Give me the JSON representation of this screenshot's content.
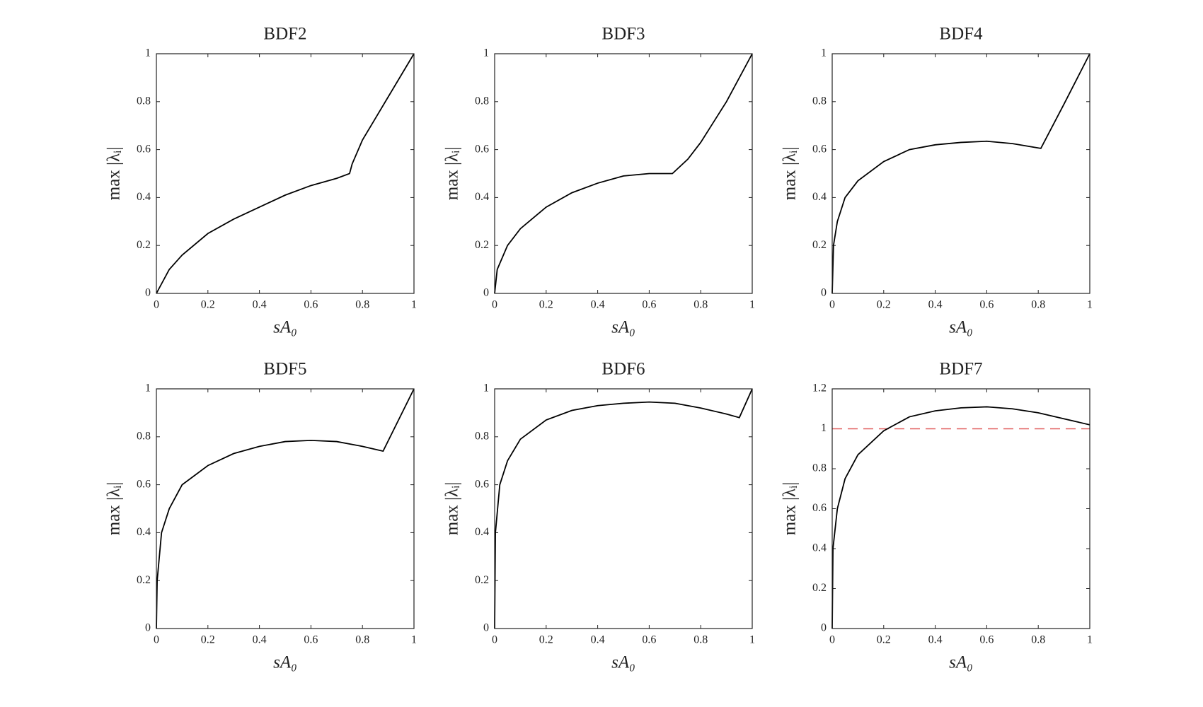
{
  "chart_data": [
    {
      "type": "line",
      "title": "BDF2",
      "xlabel": "sA₀",
      "ylabel": "max |λᵢ|",
      "color": "#000000",
      "x": [
        0,
        0.05,
        0.1,
        0.2,
        0.3,
        0.4,
        0.5,
        0.6,
        0.7,
        0.75,
        0.76,
        0.8,
        0.85,
        0.9,
        0.95,
        1
      ],
      "values": [
        0,
        0.1,
        0.16,
        0.25,
        0.31,
        0.36,
        0.41,
        0.45,
        0.48,
        0.5,
        0.54,
        0.64,
        0.73,
        0.82,
        0.91,
        1
      ],
      "xlim": [
        0,
        1
      ],
      "ylim": [
        0,
        1
      ],
      "xticks": [
        0,
        0.2,
        0.4,
        0.6,
        0.8,
        1
      ],
      "yticks": [
        0,
        0.2,
        0.4,
        0.6,
        0.8,
        1
      ]
    },
    {
      "type": "line",
      "title": "BDF3",
      "xlabel": "sA₀",
      "ylabel": "max |λᵢ|",
      "color": "#000000",
      "x": [
        0,
        0.01,
        0.05,
        0.1,
        0.2,
        0.3,
        0.4,
        0.5,
        0.6,
        0.69,
        0.75,
        0.8,
        0.9,
        1
      ],
      "values": [
        0,
        0.1,
        0.2,
        0.27,
        0.36,
        0.42,
        0.46,
        0.49,
        0.5,
        0.5,
        0.56,
        0.63,
        0.8,
        1
      ],
      "xlim": [
        0,
        1
      ],
      "ylim": [
        0,
        1
      ],
      "xticks": [
        0,
        0.2,
        0.4,
        0.6,
        0.8,
        1
      ],
      "yticks": [
        0,
        0.2,
        0.4,
        0.6,
        0.8,
        1
      ]
    },
    {
      "type": "line",
      "title": "BDF4",
      "xlabel": "sA₀",
      "ylabel": "max |λᵢ|",
      "color": "#000000",
      "x": [
        0,
        0.005,
        0.02,
        0.05,
        0.1,
        0.2,
        0.3,
        0.4,
        0.5,
        0.6,
        0.7,
        0.81,
        0.9,
        1
      ],
      "values": [
        0,
        0.2,
        0.3,
        0.4,
        0.47,
        0.55,
        0.6,
        0.62,
        0.63,
        0.635,
        0.625,
        0.605,
        0.79,
        1
      ],
      "xlim": [
        0,
        1
      ],
      "ylim": [
        0,
        1
      ],
      "xticks": [
        0,
        0.2,
        0.4,
        0.6,
        0.8,
        1
      ],
      "yticks": [
        0,
        0.2,
        0.4,
        0.6,
        0.8,
        1
      ]
    },
    {
      "type": "line",
      "title": "BDF5",
      "xlabel": "sA₀",
      "ylabel": "max |λᵢ|",
      "color": "#000000",
      "x": [
        0,
        0.003,
        0.02,
        0.05,
        0.1,
        0.2,
        0.3,
        0.4,
        0.5,
        0.6,
        0.7,
        0.8,
        0.88,
        1
      ],
      "values": [
        0,
        0.2,
        0.4,
        0.5,
        0.6,
        0.68,
        0.73,
        0.76,
        0.78,
        0.785,
        0.78,
        0.76,
        0.74,
        1
      ],
      "xlim": [
        0,
        1
      ],
      "ylim": [
        0,
        1
      ],
      "xticks": [
        0,
        0.2,
        0.4,
        0.6,
        0.8,
        1
      ],
      "yticks": [
        0,
        0.2,
        0.4,
        0.6,
        0.8,
        1
      ]
    },
    {
      "type": "line",
      "title": "BDF6",
      "xlabel": "sA₀",
      "ylabel": "max |λᵢ|",
      "color": "#000000",
      "x": [
        0,
        0.003,
        0.02,
        0.05,
        0.1,
        0.2,
        0.3,
        0.4,
        0.5,
        0.6,
        0.7,
        0.8,
        0.9,
        0.95,
        1
      ],
      "values": [
        0,
        0.4,
        0.6,
        0.7,
        0.79,
        0.87,
        0.91,
        0.93,
        0.94,
        0.945,
        0.94,
        0.92,
        0.895,
        0.88,
        1
      ],
      "xlim": [
        0,
        1
      ],
      "ylim": [
        0,
        1
      ],
      "xticks": [
        0,
        0.2,
        0.4,
        0.6,
        0.8,
        1
      ],
      "yticks": [
        0,
        0.2,
        0.4,
        0.6,
        0.8,
        1
      ]
    },
    {
      "type": "line",
      "title": "BDF7",
      "xlabel": "sA₀",
      "ylabel": "max |λᵢ|",
      "color": "#000000",
      "x": [
        0,
        0.003,
        0.02,
        0.05,
        0.1,
        0.2,
        0.3,
        0.4,
        0.5,
        0.6,
        0.7,
        0.8,
        0.9,
        1
      ],
      "values": [
        0,
        0.4,
        0.6,
        0.75,
        0.87,
        0.99,
        1.06,
        1.09,
        1.105,
        1.11,
        1.1,
        1.08,
        1.05,
        1.02
      ],
      "xlim": [
        0,
        1
      ],
      "ylim": [
        0,
        1.2
      ],
      "xticks": [
        0,
        0.2,
        0.4,
        0.6,
        0.8,
        1
      ],
      "yticks": [
        0,
        0.2,
        0.4,
        0.6,
        0.8,
        1,
        1.2
      ],
      "reference_line": {
        "y": 1,
        "color": "#e05a5a",
        "dashed": true
      }
    }
  ]
}
